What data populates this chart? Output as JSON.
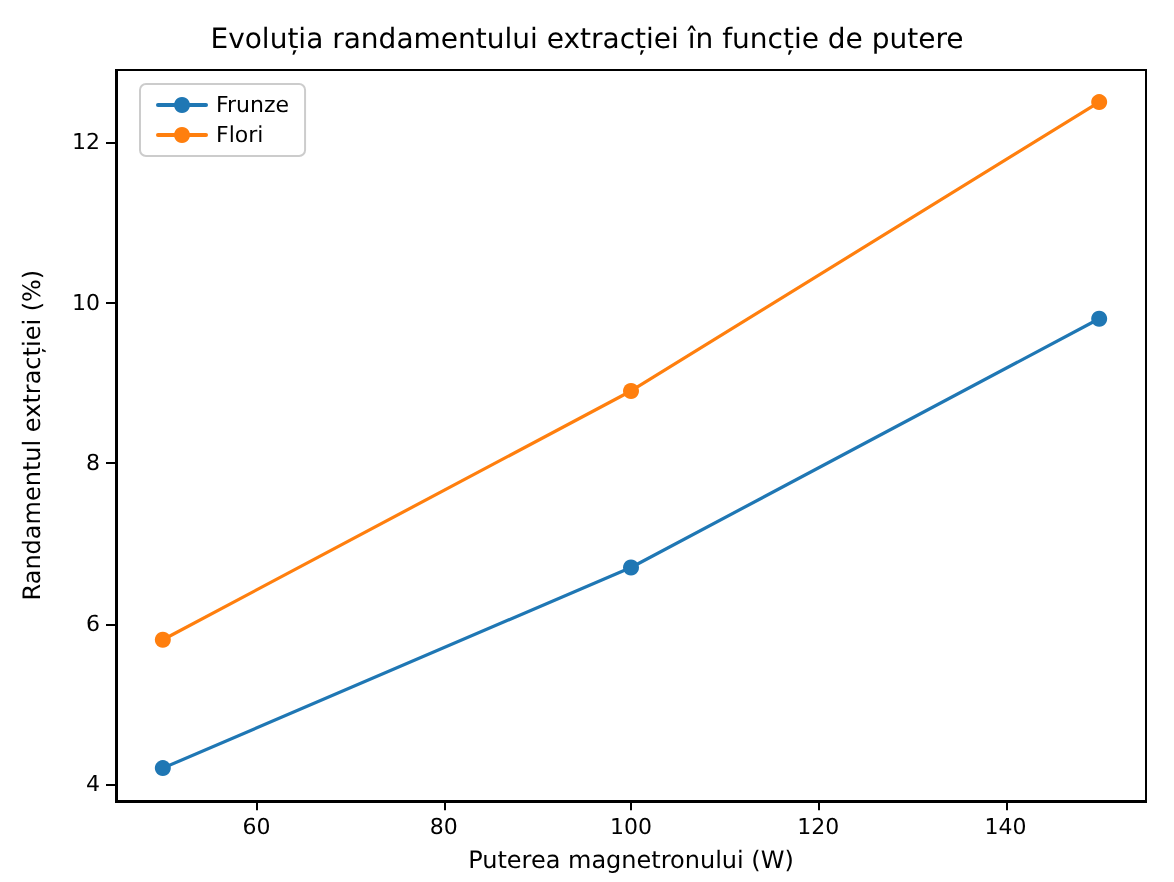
{
  "chart_data": {
    "type": "line",
    "title": "Evoluția randamentului extracției în funcție de putere",
    "xlabel": "Puterea magnetronului (W)",
    "ylabel": "Randamentul extracției (%)",
    "x": [
      50,
      100,
      150
    ],
    "series": [
      {
        "name": "Frunze",
        "color": "#1f77b4",
        "values": [
          4.2,
          6.7,
          9.8
        ]
      },
      {
        "name": "Flori",
        "color": "#ff7f0e",
        "values": [
          5.8,
          8.9,
          12.5
        ]
      }
    ],
    "xlim": [
      45,
      155
    ],
    "xticks": [
      60,
      80,
      100,
      120,
      140
    ],
    "ylim": [
      3.8,
      12.9
    ],
    "yticks": [
      4,
      6,
      8,
      10,
      12
    ],
    "grid": false,
    "legend": "top left",
    "marker": "circle",
    "line_style": "solid"
  }
}
